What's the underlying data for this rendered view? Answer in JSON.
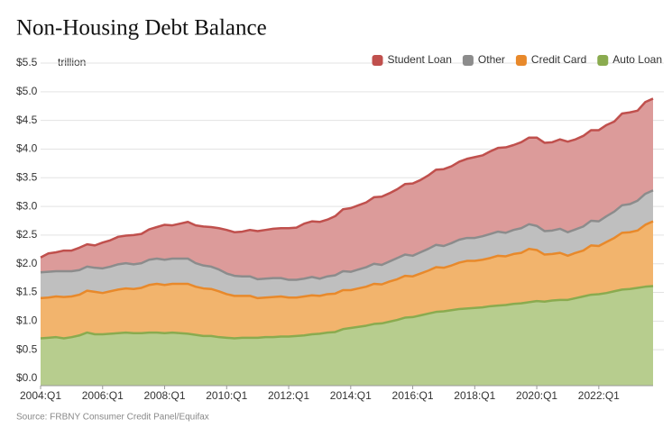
{
  "chart_data": {
    "type": "stacked-area",
    "title": "Non-Housing Debt Balance",
    "y_label": "trillion",
    "source": "Source: FRBNY Consumer Credit Panel/Equifax",
    "categories": [
      "2004:Q1",
      null,
      null,
      null,
      null,
      null,
      null,
      null,
      "2006:Q1",
      null,
      null,
      null,
      null,
      null,
      null,
      null,
      "2008:Q1",
      null,
      null,
      null,
      null,
      null,
      null,
      null,
      "2010:Q1",
      null,
      null,
      null,
      null,
      null,
      null,
      null,
      "2012:Q1",
      null,
      null,
      null,
      null,
      null,
      null,
      null,
      "2014:Q1",
      null,
      null,
      null,
      null,
      null,
      null,
      null,
      "2016:Q1",
      null,
      null,
      null,
      null,
      null,
      null,
      null,
      "2018:Q1",
      null,
      null,
      null,
      null,
      null,
      null,
      null,
      "2020:Q1",
      null,
      null,
      null,
      null,
      null,
      null,
      null,
      "2022:Q1",
      null,
      null,
      null,
      null,
      null,
      null,
      null
    ],
    "series": [
      {
        "name": "Auto Loan",
        "color": "#8aab4f",
        "fill": "#b7cd8e",
        "values": [
          0.7,
          0.71,
          0.72,
          0.7,
          0.72,
          0.75,
          0.8,
          0.77,
          0.77,
          0.78,
          0.79,
          0.8,
          0.79,
          0.79,
          0.8,
          0.8,
          0.79,
          0.8,
          0.79,
          0.78,
          0.76,
          0.74,
          0.74,
          0.72,
          0.71,
          0.7,
          0.71,
          0.71,
          0.71,
          0.72,
          0.72,
          0.73,
          0.73,
          0.74,
          0.75,
          0.77,
          0.78,
          0.8,
          0.81,
          0.86,
          0.88,
          0.9,
          0.92,
          0.95,
          0.96,
          0.99,
          1.02,
          1.06,
          1.07,
          1.1,
          1.13,
          1.16,
          1.17,
          1.19,
          1.21,
          1.22,
          1.23,
          1.24,
          1.26,
          1.27,
          1.28,
          1.3,
          1.31,
          1.33,
          1.35,
          1.34,
          1.36,
          1.37,
          1.37,
          1.4,
          1.43,
          1.46,
          1.47,
          1.49,
          1.52,
          1.55,
          1.56,
          1.58,
          1.6,
          1.61
        ]
      },
      {
        "name": "Credit Card",
        "color": "#e8892b",
        "fill": "#f2b46d",
        "values": [
          0.7,
          0.7,
          0.71,
          0.72,
          0.71,
          0.71,
          0.73,
          0.74,
          0.72,
          0.74,
          0.76,
          0.77,
          0.77,
          0.79,
          0.83,
          0.85,
          0.84,
          0.85,
          0.86,
          0.87,
          0.84,
          0.83,
          0.82,
          0.8,
          0.76,
          0.74,
          0.73,
          0.73,
          0.69,
          0.69,
          0.7,
          0.7,
          0.68,
          0.67,
          0.68,
          0.68,
          0.66,
          0.67,
          0.67,
          0.68,
          0.66,
          0.67,
          0.68,
          0.7,
          0.68,
          0.7,
          0.71,
          0.73,
          0.71,
          0.73,
          0.75,
          0.78,
          0.76,
          0.78,
          0.81,
          0.83,
          0.82,
          0.83,
          0.84,
          0.87,
          0.85,
          0.87,
          0.88,
          0.93,
          0.89,
          0.82,
          0.81,
          0.82,
          0.77,
          0.79,
          0.8,
          0.86,
          0.84,
          0.89,
          0.93,
          0.99,
          0.99,
          1.0,
          1.08,
          1.13
        ]
      },
      {
        "name": "Other",
        "color": "#8c8c8c",
        "fill": "#bfbfbf",
        "values": [
          0.45,
          0.45,
          0.44,
          0.45,
          0.44,
          0.43,
          0.42,
          0.42,
          0.43,
          0.43,
          0.44,
          0.44,
          0.43,
          0.43,
          0.44,
          0.44,
          0.44,
          0.44,
          0.44,
          0.44,
          0.41,
          0.4,
          0.39,
          0.38,
          0.36,
          0.35,
          0.34,
          0.34,
          0.33,
          0.33,
          0.33,
          0.32,
          0.31,
          0.31,
          0.31,
          0.32,
          0.3,
          0.31,
          0.32,
          0.33,
          0.32,
          0.33,
          0.34,
          0.35,
          0.34,
          0.35,
          0.37,
          0.37,
          0.36,
          0.37,
          0.38,
          0.39,
          0.38,
          0.39,
          0.4,
          0.4,
          0.4,
          0.41,
          0.42,
          0.42,
          0.41,
          0.42,
          0.43,
          0.43,
          0.42,
          0.41,
          0.41,
          0.42,
          0.41,
          0.41,
          0.42,
          0.43,
          0.43,
          0.45,
          0.46,
          0.48,
          0.49,
          0.52,
          0.54,
          0.54
        ]
      },
      {
        "name": "Student Loan",
        "color": "#c0504d",
        "fill": "#dc9b9a",
        "values": [
          0.26,
          0.32,
          0.33,
          0.36,
          0.36,
          0.39,
          0.39,
          0.39,
          0.45,
          0.46,
          0.48,
          0.48,
          0.51,
          0.51,
          0.53,
          0.55,
          0.61,
          0.58,
          0.61,
          0.64,
          0.66,
          0.68,
          0.69,
          0.72,
          0.76,
          0.76,
          0.78,
          0.81,
          0.84,
          0.85,
          0.86,
          0.87,
          0.9,
          0.91,
          0.96,
          0.97,
          0.99,
          0.99,
          1.03,
          1.08,
          1.11,
          1.12,
          1.13,
          1.16,
          1.19,
          1.19,
          1.2,
          1.23,
          1.26,
          1.26,
          1.28,
          1.31,
          1.34,
          1.34,
          1.36,
          1.38,
          1.41,
          1.41,
          1.44,
          1.46,
          1.49,
          1.48,
          1.5,
          1.51,
          1.54,
          1.54,
          1.54,
          1.56,
          1.58,
          1.57,
          1.58,
          1.58,
          1.59,
          1.59,
          1.57,
          1.6,
          1.6,
          1.57,
          1.6,
          1.6
        ]
      }
    ],
    "legend_order": [
      3,
      2,
      1,
      0
    ],
    "ylim": [
      0,
      5.5
    ],
    "yticks": [
      {
        "value": 0,
        "label": "$0.0"
      },
      {
        "value": 0.5,
        "label": "$0.5"
      },
      {
        "value": 1,
        "label": "$1.0"
      },
      {
        "value": 1.5,
        "label": "$1.5"
      },
      {
        "value": 2,
        "label": "$2.0"
      },
      {
        "value": 2.5,
        "label": "$2.5"
      },
      {
        "value": 3,
        "label": "$3.0"
      },
      {
        "value": 3.5,
        "label": "$3.5"
      },
      {
        "value": 4,
        "label": "$4.0"
      },
      {
        "value": 4.5,
        "label": "$4.5"
      },
      {
        "value": 5,
        "label": "$5.0"
      },
      {
        "value": 5.5,
        "label": "$5.5"
      }
    ],
    "grid": true
  }
}
